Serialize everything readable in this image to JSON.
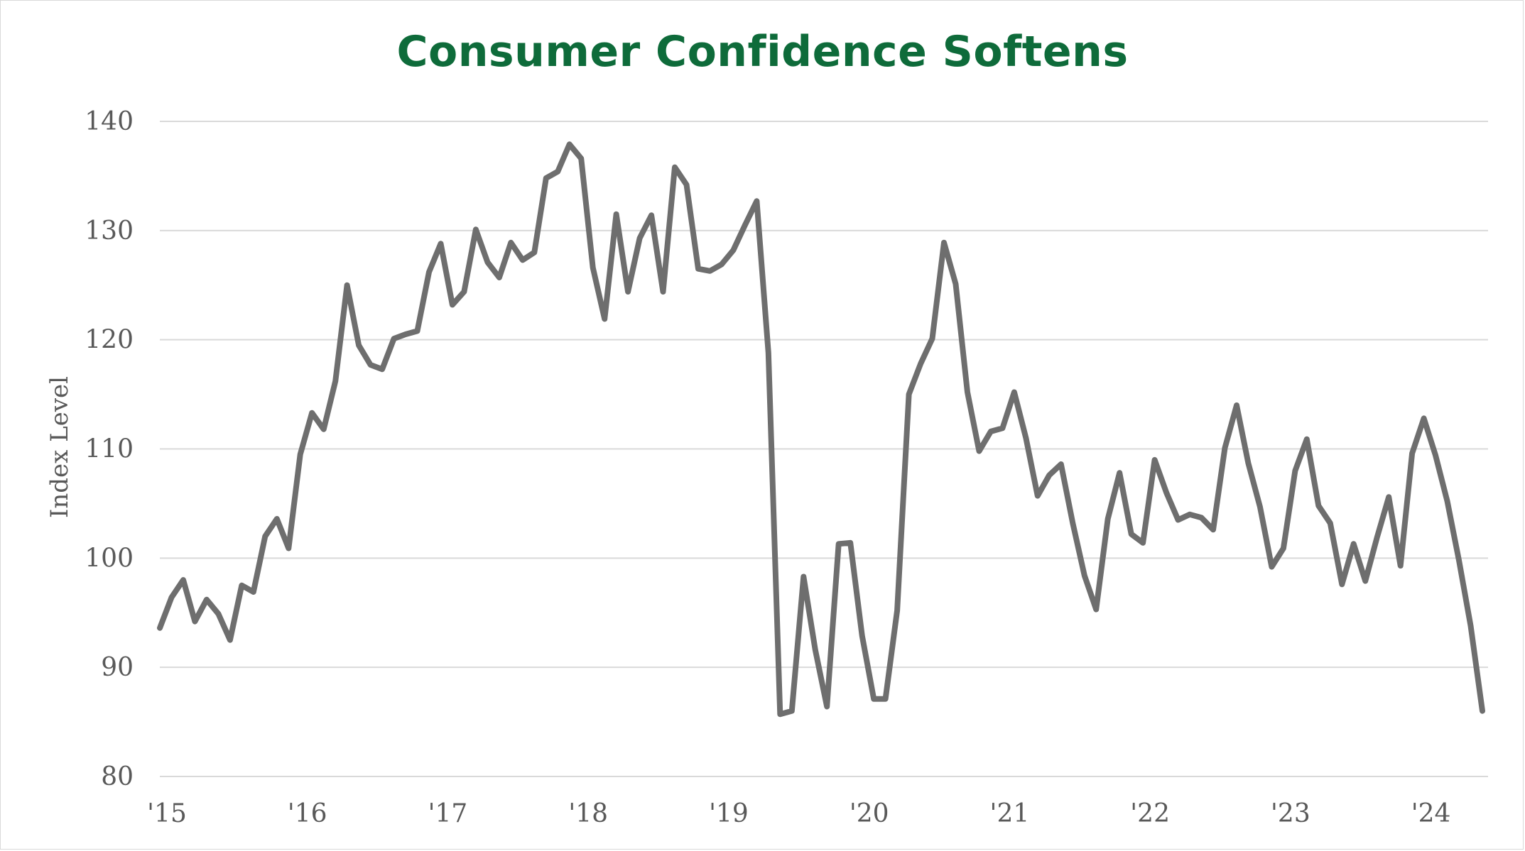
{
  "chart_data": {
    "type": "line",
    "title": "Consumer Confidence Softens",
    "ylabel": "Index Level",
    "xlabel": "",
    "ylim": [
      80,
      140
    ],
    "yticks": [
      80,
      90,
      100,
      110,
      120,
      130,
      140
    ],
    "grid": true,
    "legend": "none",
    "colors": {
      "title": "#0e6b3a",
      "line": "#6e6e6e",
      "grid": "#d9d9d9",
      "text": "#595959"
    },
    "x_tick_labels": [
      "'15",
      "'16",
      "'17",
      "'18",
      "'19",
      "'20",
      "'21",
      "'22",
      "'23",
      "'24"
    ],
    "x_start_year": 2015,
    "series": [
      {
        "values": [
          93.6,
          96.4,
          98.0,
          94.2,
          96.2,
          94.9,
          92.5,
          97.5,
          96.9,
          102.0,
          103.6,
          100.9,
          109.5,
          113.3,
          111.8,
          116.2,
          125.0,
          119.5,
          117.7,
          117.3,
          120.1,
          120.5,
          120.8,
          126.2,
          128.8,
          123.2,
          124.4,
          130.1,
          127.1,
          125.7,
          128.9,
          127.3,
          128.0,
          134.8,
          135.4,
          137.9,
          136.6,
          126.6,
          121.9,
          131.5,
          124.4,
          129.3,
          131.4,
          124.4,
          135.8,
          134.2,
          126.5,
          126.3,
          126.9,
          128.2,
          130.5,
          132.7,
          118.8,
          85.7,
          86.0,
          98.3,
          91.6,
          86.4,
          101.3,
          101.4,
          92.9,
          87.1,
          87.1,
          95.2,
          115.0,
          117.8,
          120.1,
          128.9,
          125.1,
          115.2,
          109.8,
          111.6,
          111.9,
          115.2,
          111.0,
          105.7,
          107.6,
          108.6,
          103.2,
          98.4,
          95.3,
          103.6,
          107.8,
          102.2,
          101.4,
          109.0,
          106.0,
          103.5,
          104.0,
          103.7,
          102.6,
          110.1,
          114.0,
          108.7,
          104.7,
          99.2,
          100.9,
          108.0,
          110.9,
          104.8,
          103.2,
          97.6,
          101.3,
          97.9,
          101.9,
          105.6,
          99.3,
          109.6,
          112.8,
          109.4,
          105.2,
          99.8,
          93.8,
          86.0
        ]
      }
    ]
  }
}
